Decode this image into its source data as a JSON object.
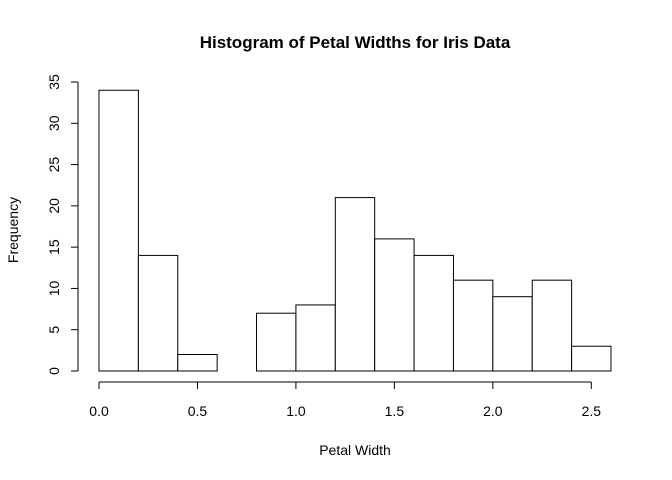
{
  "chart_data": {
    "type": "bar",
    "title": "Histogram of Petal Widths for Iris Data",
    "xlabel": "Petal Width",
    "ylabel": "Frequency",
    "bins": [
      {
        "start": 0.0,
        "end": 0.2,
        "count": 34
      },
      {
        "start": 0.2,
        "end": 0.4,
        "count": 14
      },
      {
        "start": 0.4,
        "end": 0.6,
        "count": 2
      },
      {
        "start": 0.6,
        "end": 0.8,
        "count": 0
      },
      {
        "start": 0.8,
        "end": 1.0,
        "count": 7
      },
      {
        "start": 1.0,
        "end": 1.2,
        "count": 8
      },
      {
        "start": 1.2,
        "end": 1.4,
        "count": 21
      },
      {
        "start": 1.4,
        "end": 1.6,
        "count": 16
      },
      {
        "start": 1.6,
        "end": 1.8,
        "count": 14
      },
      {
        "start": 1.8,
        "end": 2.0,
        "count": 11
      },
      {
        "start": 2.0,
        "end": 2.2,
        "count": 9
      },
      {
        "start": 2.2,
        "end": 2.4,
        "count": 11
      },
      {
        "start": 2.4,
        "end": 2.6,
        "count": 3
      }
    ],
    "xlim": [
      0.0,
      2.6
    ],
    "ylim": [
      0,
      35
    ],
    "x_ticks": [
      "0.0",
      "0.5",
      "1.0",
      "1.5",
      "2.0",
      "2.5"
    ],
    "y_ticks": [
      "0",
      "5",
      "10",
      "15",
      "20",
      "25",
      "30",
      "35"
    ],
    "grid": false,
    "bar_fill": "#ffffff",
    "bar_stroke": "#000000"
  }
}
